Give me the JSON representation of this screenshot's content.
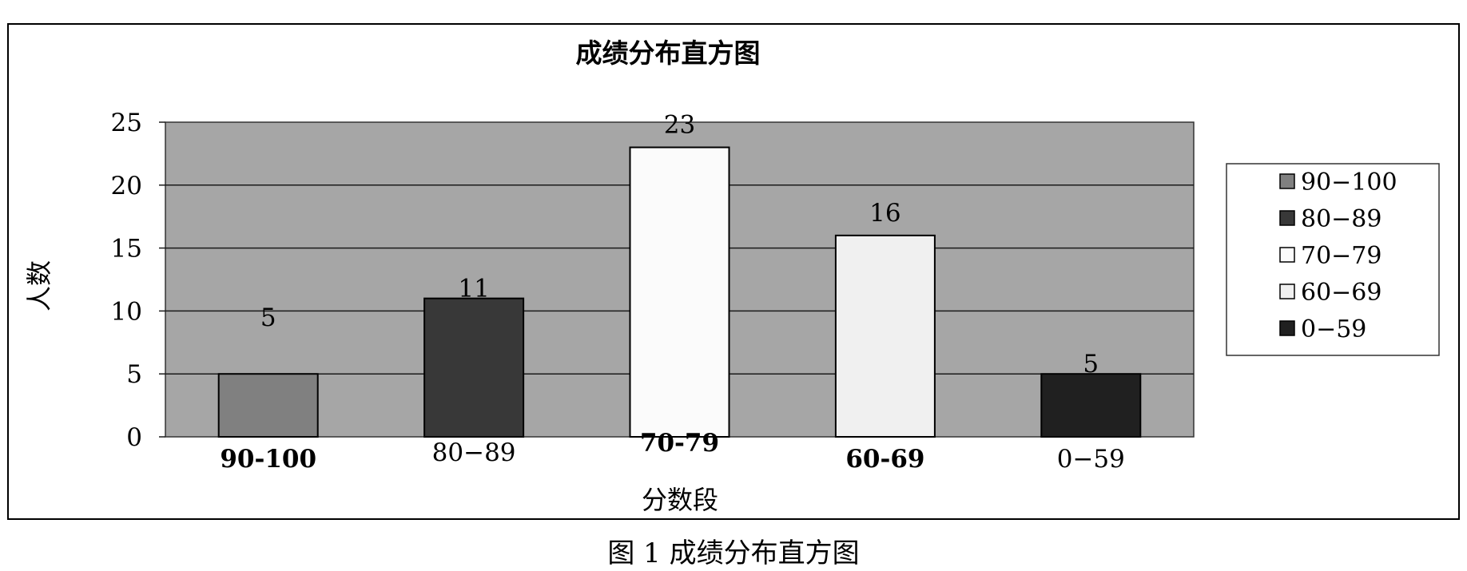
{
  "caption": "图 1 成绩分布直方图",
  "chart_data": {
    "type": "bar",
    "title": "成绩分布直方图",
    "xlabel": "分数段",
    "ylabel": "人数",
    "categories": [
      "90-100",
      "80−89",
      "70-79",
      "60-69",
      "0−59"
    ],
    "values": [
      5,
      11,
      23,
      16,
      5
    ],
    "legend_labels": [
      "90−100",
      "80−89",
      "70−79",
      "60−69",
      "0−59"
    ],
    "colors": [
      "#808080",
      "#383838",
      "#fbfbfb",
      "#f0f0f0",
      "#202020"
    ],
    "plot_background": "#a6a6a6",
    "ylim": [
      0,
      25
    ],
    "yticks": [
      0,
      5,
      10,
      15,
      20,
      25
    ],
    "grid": true,
    "legend_position": "right"
  }
}
